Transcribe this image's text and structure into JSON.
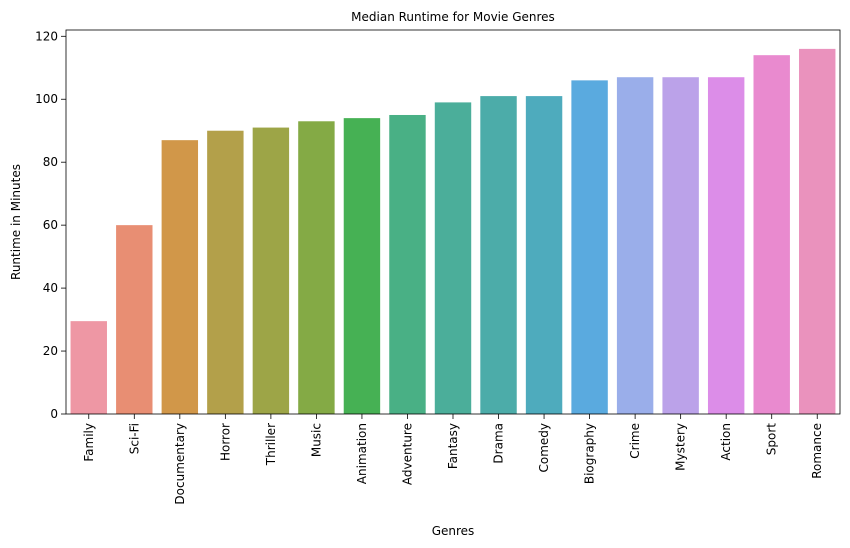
{
  "chart_data": {
    "type": "bar",
    "title": "Median Runtime for Movie Genres",
    "xlabel": "Genres",
    "ylabel": "Runtime in Minutes",
    "ylim": [
      0,
      122
    ],
    "yticks": [
      0,
      20,
      40,
      60,
      80,
      100,
      120
    ],
    "grid": false,
    "legend": "none",
    "categories": [
      "Family",
      "Sci-Fi",
      "Documentary",
      "Horror",
      "Thriller",
      "Music",
      "Animation",
      "Adventure",
      "Fantasy",
      "Drama",
      "Comedy",
      "Biography",
      "Crime",
      "Mystery",
      "Action",
      "Sport",
      "Romance"
    ],
    "values": [
      29.5,
      60,
      87,
      90,
      91,
      93,
      94,
      95,
      99,
      101,
      101,
      106,
      107,
      107,
      107,
      114,
      116
    ],
    "colors": [
      "#ee97a4",
      "#e88e73",
      "#d19749",
      "#b3a04a",
      "#9da547",
      "#84aa45",
      "#46b154",
      "#49b085",
      "#4bae9a",
      "#4caca9",
      "#4eabbd",
      "#5aaadf",
      "#9aaeea",
      "#bba2e9",
      "#dc8de8",
      "#e98acf",
      "#ea92bd"
    ]
  }
}
